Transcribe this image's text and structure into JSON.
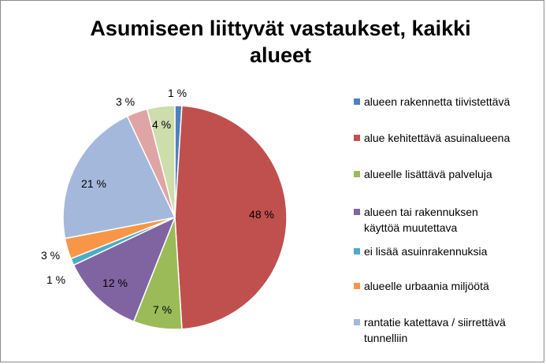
{
  "chart_data": {
    "type": "pie",
    "title": "Asumiseen liittyvät vastaukset, kaikki alueet",
    "title_lines": [
      "Asumiseen liittyvät vastaukset, kaikki",
      "alueet"
    ],
    "legend_position": "right",
    "slices": [
      {
        "label": "alueen rakennetta tiivistettävä",
        "value": 1,
        "data_label": "1 %",
        "color": "#4f81bd"
      },
      {
        "label": "alue kehitettävä asuinalueena",
        "value": 48,
        "data_label": "48 %",
        "color": "#c0504d"
      },
      {
        "label": "alueelle lisättävä palveluja",
        "value": 7,
        "data_label": "7 %",
        "color": "#9bbb59"
      },
      {
        "label": "alueen tai rakennuksen käyttöä muutettava",
        "value": 12,
        "data_label": "12 %",
        "color": "#8064a2"
      },
      {
        "label": "ei lisää asuinrakennuksia",
        "value": 1,
        "data_label": "1 %",
        "color": "#4bacc6"
      },
      {
        "label": "alueelle urbaania miljöötä",
        "value": 3,
        "data_label": "3 %",
        "color": "#f79646"
      },
      {
        "label": "rantatie katettava / siirrettävä tunnelliin",
        "value": 21,
        "data_label": "21 %",
        "color": "#a4b8db"
      },
      {
        "label": "",
        "value": 3,
        "data_label": "3 %",
        "color": "#dea5a4"
      },
      {
        "label": "",
        "value": 4,
        "data_label": "4 %",
        "color": "#cdddac"
      }
    ]
  },
  "legend_lines": [
    [
      "alueen rakennetta tiivistettävä"
    ],
    [
      "alue kehitettävä asuinalueena"
    ],
    [
      "alueelle lisättävä palveluja"
    ],
    [
      "alueen tai rakennuksen",
      "käyttöä muutettava"
    ],
    [
      "ei lisää asuinrakennuksia"
    ],
    [
      "alueelle urbaania miljöötä"
    ],
    [
      "rantatie katettava / siirrettävä",
      "tunnelliin"
    ]
  ]
}
